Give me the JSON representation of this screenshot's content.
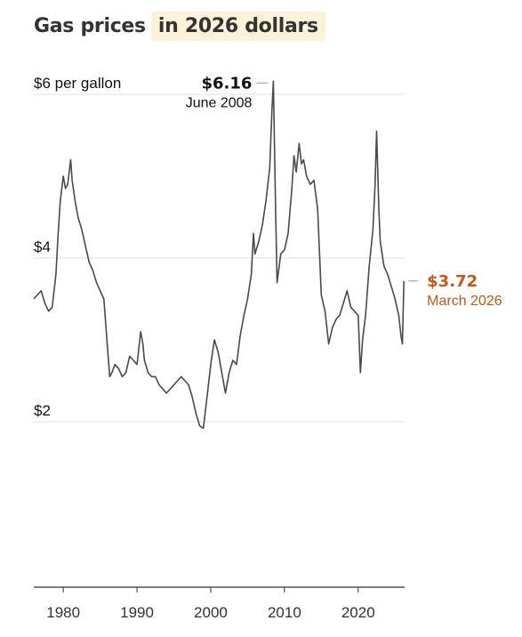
{
  "header": {
    "title_plain": "Gas prices",
    "title_highlight": "in 2026 dollars"
  },
  "colors": {
    "line": "#4a4a4a",
    "grid": "#e2e2e2",
    "accent": "#c2571a",
    "highlight_bg": "#fbf2d9"
  },
  "chart_data": {
    "type": "line",
    "title": "Gas prices in 2026 dollars",
    "xlabel": "",
    "ylabel": "",
    "xlim": [
      1976,
      2026.3
    ],
    "ylim": [
      0,
      6.2
    ],
    "y_ticks": [
      {
        "value": 6,
        "label": "$6 per gallon"
      },
      {
        "value": 4,
        "label": "$4"
      },
      {
        "value": 2,
        "label": "$2"
      }
    ],
    "x_ticks": [
      {
        "value": 1980,
        "label": "1980"
      },
      {
        "value": 1990,
        "label": "1990"
      },
      {
        "value": 2000,
        "label": "2000"
      },
      {
        "value": 2010,
        "label": "2010"
      },
      {
        "value": 2020,
        "label": "2020"
      }
    ],
    "annotations": {
      "peak": {
        "x": 2008.5,
        "y": 6.16,
        "value_label": "$6.16",
        "date_label": "June 2008"
      },
      "latest": {
        "x": 2026.2,
        "y": 3.72,
        "value_label": "$3.72",
        "date_label": "March 2026"
      }
    },
    "series": [
      {
        "x": [
          1976.0,
          1976.5,
          1977.0,
          1977.5,
          1978.0,
          1978.5,
          1979.0,
          1979.3,
          1979.6,
          1980.0,
          1980.3,
          1980.6,
          1981.0,
          1981.2,
          1981.6,
          1982.0,
          1982.5,
          1983.0,
          1983.5,
          1984.0,
          1984.5,
          1985.0,
          1985.5,
          1986.0,
          1986.3,
          1986.6,
          1987.0,
          1987.5,
          1988.0,
          1988.5,
          1989.0,
          1989.5,
          1990.0,
          1990.5,
          1990.8,
          1991.0,
          1991.5,
          1992.0,
          1992.5,
          1993.0,
          1993.5,
          1994.0,
          1994.5,
          1995.0,
          1995.5,
          1996.0,
          1996.5,
          1997.0,
          1997.5,
          1998.0,
          1998.5,
          1999.0,
          1999.5,
          2000.0,
          2000.5,
          2001.0,
          2001.5,
          2002.0,
          2002.5,
          2003.0,
          2003.5,
          2004.0,
          2004.5,
          2005.0,
          2005.5,
          2005.8,
          2006.0,
          2006.5,
          2007.0,
          2007.5,
          2008.0,
          2008.3,
          2008.5,
          2008.8,
          2009.0,
          2009.5,
          2010.0,
          2010.5,
          2011.0,
          2011.3,
          2011.6,
          2012.0,
          2012.3,
          2012.6,
          2013.0,
          2013.5,
          2014.0,
          2014.5,
          2015.0,
          2015.5,
          2016.0,
          2016.5,
          2017.0,
          2017.5,
          2018.0,
          2018.5,
          2019.0,
          2019.5,
          2020.0,
          2020.3,
          2020.6,
          2021.0,
          2021.5,
          2022.0,
          2022.3,
          2022.5,
          2022.8,
          2023.0,
          2023.5,
          2024.0,
          2024.5,
          2025.0,
          2025.5,
          2025.8,
          2026.0,
          2026.2
        ],
        "y": [
          3.5,
          3.55,
          3.6,
          3.45,
          3.35,
          3.4,
          3.8,
          4.3,
          4.7,
          5.0,
          4.85,
          4.9,
          5.2,
          4.95,
          4.7,
          4.5,
          4.35,
          4.15,
          3.95,
          3.85,
          3.7,
          3.6,
          3.5,
          2.9,
          2.55,
          2.6,
          2.7,
          2.65,
          2.55,
          2.6,
          2.8,
          2.75,
          2.7,
          3.1,
          2.95,
          2.75,
          2.6,
          2.55,
          2.55,
          2.45,
          2.4,
          2.35,
          2.4,
          2.45,
          2.5,
          2.55,
          2.5,
          2.45,
          2.3,
          2.1,
          1.95,
          1.92,
          2.3,
          2.7,
          3.0,
          2.85,
          2.6,
          2.35,
          2.6,
          2.75,
          2.7,
          3.05,
          3.3,
          3.5,
          3.8,
          4.3,
          4.05,
          4.2,
          4.4,
          4.7,
          5.1,
          5.8,
          6.16,
          4.6,
          3.7,
          4.05,
          4.1,
          4.3,
          4.85,
          5.25,
          5.05,
          5.4,
          5.15,
          5.2,
          5.0,
          4.9,
          4.95,
          4.6,
          3.55,
          3.35,
          2.95,
          3.15,
          3.25,
          3.3,
          3.45,
          3.6,
          3.4,
          3.35,
          3.3,
          2.6,
          3.0,
          3.3,
          3.9,
          4.35,
          4.9,
          5.55,
          4.6,
          4.2,
          3.9,
          3.8,
          3.65,
          3.5,
          3.3,
          3.05,
          2.95,
          3.72
        ]
      }
    ]
  }
}
